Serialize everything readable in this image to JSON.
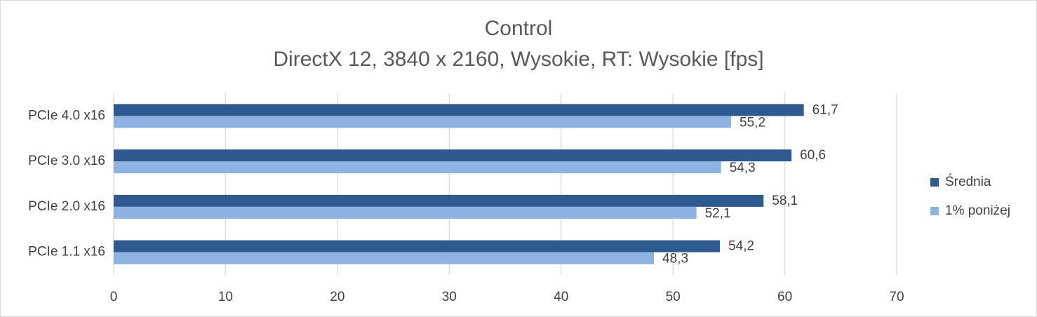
{
  "chart_data": {
    "type": "bar",
    "orientation": "horizontal",
    "title": "Control",
    "subtitle": "DirectX 12, 3840 x 2160, Wysokie, RT: Wysokie [fps]",
    "categories": [
      "PCIe 4.0 x16",
      "PCIe 3.0 x16",
      "PCIe 2.0 x16",
      "PCIe 1.1 x16"
    ],
    "series": [
      {
        "name": "Średnia",
        "color": "#2f5a8f",
        "values": [
          61.7,
          60.6,
          58.1,
          54.2
        ],
        "value_labels": [
          "61,7",
          "60,6",
          "58,1",
          "54,2"
        ]
      },
      {
        "name": "1% poniżej",
        "color": "#8db3e2",
        "values": [
          55.2,
          54.3,
          52.1,
          48.3
        ],
        "value_labels": [
          "55,2",
          "54,3",
          "52,1",
          "48,3"
        ]
      }
    ],
    "xlim": [
      0,
      70
    ],
    "xticks": [
      0,
      10,
      20,
      30,
      40,
      50,
      60,
      70
    ],
    "grid": true,
    "legend": "right"
  }
}
